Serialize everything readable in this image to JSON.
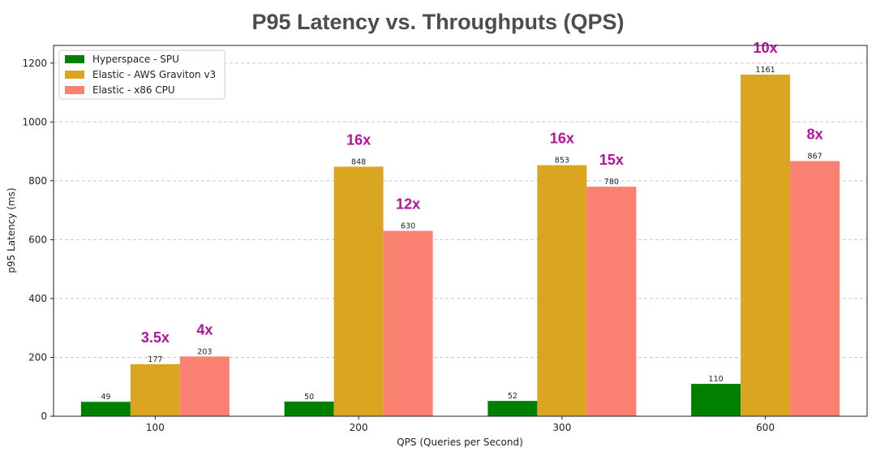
{
  "chart_data": {
    "type": "bar",
    "title": "P95 Latency vs. Throughputs (QPS)",
    "xlabel": "QPS (Queries per Second)",
    "ylabel": "p95 Latency (ms)",
    "categories": [
      "100",
      "200",
      "300",
      "600"
    ],
    "ylim": [
      0,
      1260
    ],
    "yticks": [
      "0",
      "200",
      "400",
      "600",
      "800",
      "1000",
      "1200"
    ],
    "grid": true,
    "legend_position": "top-left",
    "series": [
      {
        "name": "Hyperspace - SPU",
        "color": "#008000",
        "values": [
          49,
          50,
          52,
          110
        ],
        "labels": [
          "49",
          "50",
          "52",
          "110"
        ]
      },
      {
        "name": "Elastic - AWS Graviton v3",
        "color": "#daa520",
        "values": [
          177,
          848,
          853,
          1161
        ],
        "labels": [
          "177",
          "848",
          "853",
          "1161"
        ]
      },
      {
        "name": "Elastic - x86 CPU",
        "color": "#fa8072",
        "values": [
          203,
          630,
          780,
          867
        ],
        "labels": [
          "203",
          "630",
          "780",
          "867"
        ]
      }
    ],
    "annotations": [
      {
        "text": "3.5x",
        "category": 0,
        "series": 1
      },
      {
        "text": "4x",
        "category": 0,
        "series": 2
      },
      {
        "text": "16x",
        "category": 1,
        "series": 1
      },
      {
        "text": "12x",
        "category": 1,
        "series": 2
      },
      {
        "text": "16x",
        "category": 2,
        "series": 1
      },
      {
        "text": "15x",
        "category": 2,
        "series": 2
      },
      {
        "text": "10x",
        "category": 3,
        "series": 1
      },
      {
        "text": "8x",
        "category": 3,
        "series": 2
      }
    ],
    "annotation_color": "#b5129c"
  }
}
